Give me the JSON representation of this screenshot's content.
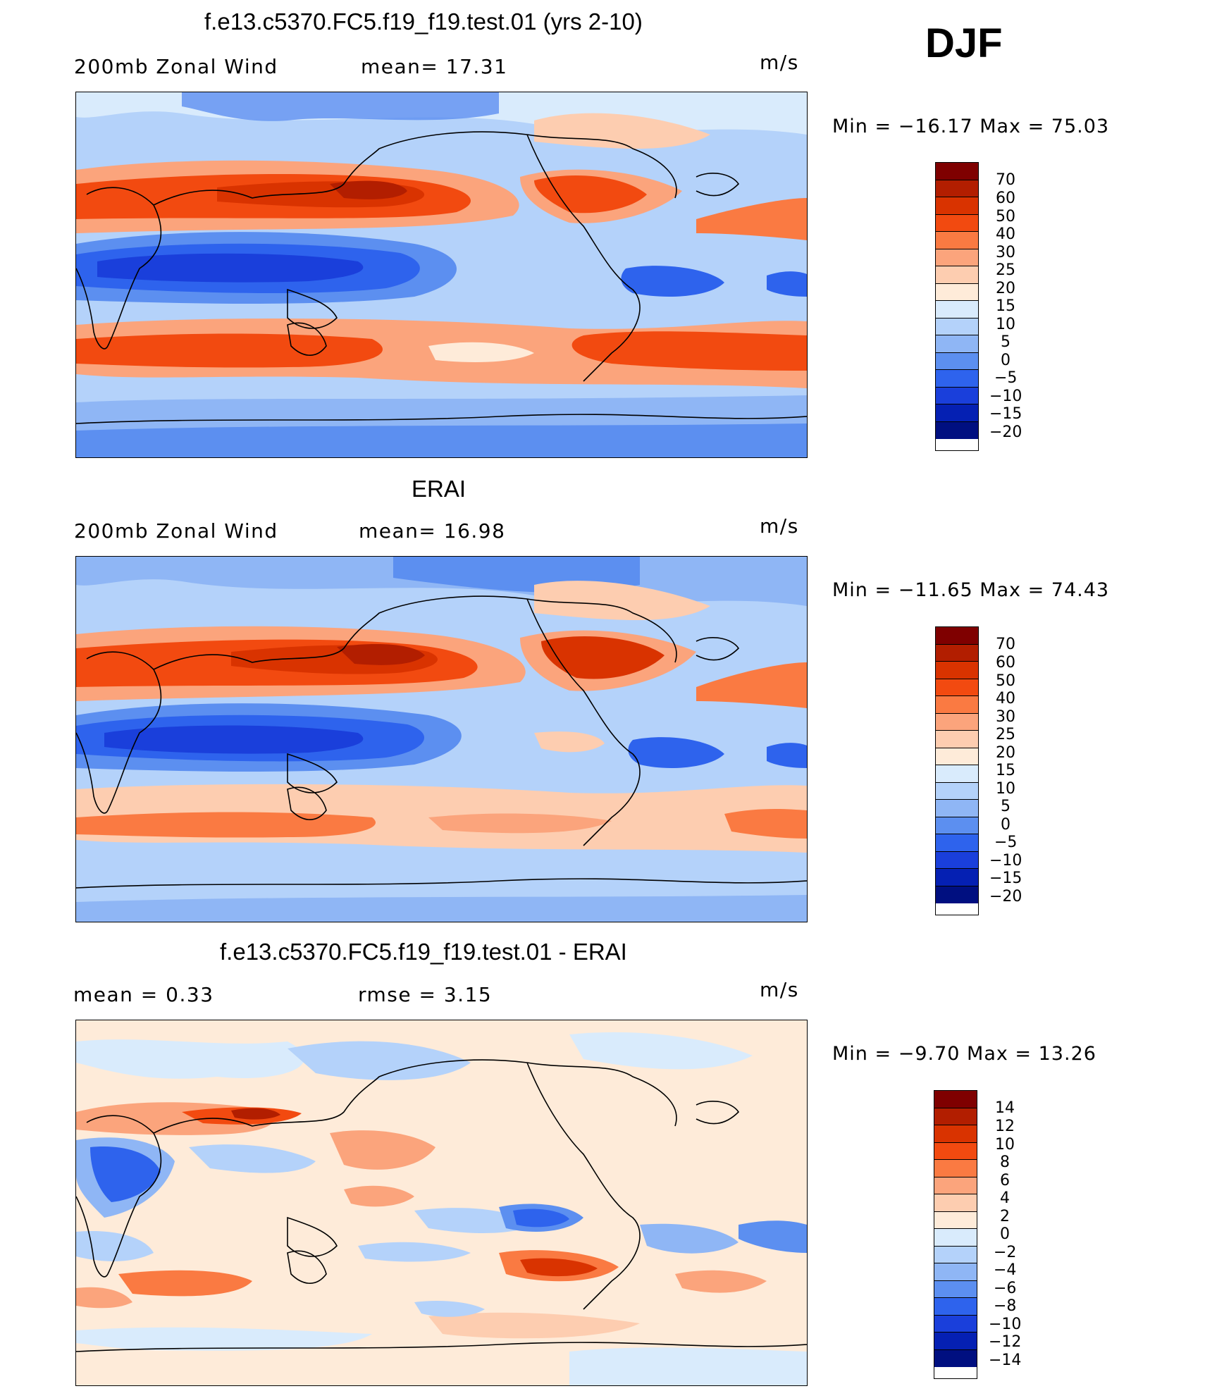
{
  "season": "DJF",
  "units": "m/s",
  "panels": [
    {
      "title": "f.e13.c5370.FC5.f19_f19.test.01 (yrs 2-10)",
      "left_label": "200mb Zonal Wind",
      "center_label": "mean=   17.31",
      "right_label": "m/s",
      "min_max": "Min  =  −16.17  Max  =    75.03",
      "colorbar_levels": [
        "70",
        "60",
        "50",
        "40",
        "30",
        "25",
        "20",
        "15",
        "10",
        "5",
        "0",
        "−5",
        "−10",
        "−15",
        "−20"
      ]
    },
    {
      "title": "ERAI",
      "left_label": "200mb Zonal Wind",
      "center_label": "mean=   16.98",
      "right_label": "m/s",
      "min_max": "Min  =  −11.65  Max  =    74.43",
      "colorbar_levels": [
        "70",
        "60",
        "50",
        "40",
        "30",
        "25",
        "20",
        "15",
        "10",
        "5",
        "0",
        "−5",
        "−10",
        "−15",
        "−20"
      ]
    },
    {
      "title": "f.e13.c5370.FC5.f19_f19.test.01 - ERAI",
      "left_label": "mean  =     0.33",
      "center_label": "rmse  =     3.15",
      "right_label": "m/s",
      "min_max": "Min  =    −9.70  Max  =    13.26",
      "colorbar_levels": [
        "14",
        "12",
        "10",
        "8",
        "6",
        "4",
        "2",
        "0",
        "−2",
        "−4",
        "−6",
        "−8",
        "−10",
        "−12",
        "−14"
      ]
    }
  ],
  "colors": {
    "abs_scale": [
      "#7f0000",
      "#b21e00",
      "#d93300",
      "#f24a10",
      "#fa7a42",
      "#fba47c",
      "#fdcdb0",
      "#feebd9",
      "#d9ebfc",
      "#b4d2fa",
      "#8fb6f5",
      "#5c8ff0",
      "#2e63ed",
      "#1a3fdb",
      "#0520b3",
      "#000f80"
    ],
    "diff_scale": [
      "#7f0000",
      "#b21e00",
      "#d93300",
      "#f24a10",
      "#fa7a42",
      "#fba47c",
      "#fdcdb0",
      "#feebd9",
      "#d9ebfc",
      "#b4d2fa",
      "#8fb6f5",
      "#5c8ff0",
      "#2e63ed",
      "#1a3fdb",
      "#0520b3",
      "#000f80"
    ]
  }
}
